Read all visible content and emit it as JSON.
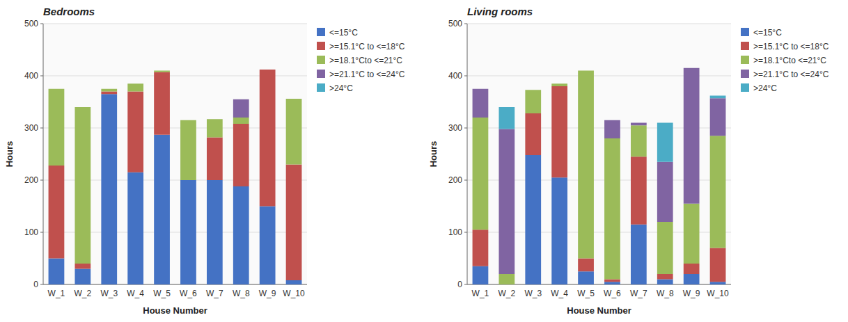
{
  "chart_data": [
    {
      "type": "bar",
      "stacked": true,
      "title": "Bedrooms",
      "xlabel": "House Number",
      "ylabel": "Hours",
      "categories": [
        "W_1",
        "W_2",
        "W_3",
        "W_4",
        "W_5",
        "W_6",
        "W_7",
        "W_8",
        "W_9",
        "W_10"
      ],
      "series": [
        {
          "name": "<=15°C",
          "color": "#4472C4",
          "values": [
            50,
            30,
            365,
            215,
            287,
            200,
            200,
            188,
            150,
            8
          ]
        },
        {
          "name": ">=15.1°C to <=18°C",
          "color": "#C0504D",
          "values": [
            178,
            10,
            5,
            155,
            120,
            0,
            82,
            120,
            262,
            222
          ]
        },
        {
          "name": ">=18.1°Cto <=21°C",
          "color": "#9BBB59",
          "values": [
            147,
            300,
            5,
            15,
            3,
            115,
            35,
            12,
            0,
            126
          ]
        },
        {
          "name": ">=21.1°C to <=24°C",
          "color": "#8064A2",
          "values": [
            0,
            0,
            0,
            0,
            0,
            0,
            0,
            35,
            0,
            0
          ]
        },
        {
          "name": ">24°C",
          "color": "#4BACC6",
          "values": [
            0,
            0,
            0,
            0,
            0,
            0,
            0,
            0,
            0,
            0
          ]
        }
      ],
      "ylim": [
        0,
        500
      ],
      "yticks": [
        0,
        100,
        200,
        300,
        400,
        500
      ],
      "grid": true,
      "legend": "right"
    },
    {
      "type": "bar",
      "stacked": true,
      "title": "Living rooms",
      "xlabel": "House Number",
      "ylabel": "Hours",
      "categories": [
        "W_1",
        "W_2",
        "W_3",
        "W_4",
        "W_5",
        "W_6",
        "W_7",
        "W_8",
        "W_9",
        "W_10"
      ],
      "series": [
        {
          "name": "<=15°C",
          "color": "#4472C4",
          "values": [
            35,
            0,
            248,
            205,
            25,
            5,
            115,
            10,
            20,
            5
          ]
        },
        {
          "name": ">=15.1°C to <=18°C",
          "color": "#C0504D",
          "values": [
            70,
            0,
            80,
            175,
            25,
            5,
            130,
            10,
            20,
            65
          ]
        },
        {
          "name": ">=18.1°Cto <=21°C",
          "color": "#9BBB59",
          "values": [
            215,
            20,
            45,
            5,
            360,
            270,
            60,
            100,
            115,
            215
          ]
        },
        {
          "name": ">=21.1°C to <=24°C",
          "color": "#8064A2",
          "values": [
            55,
            278,
            0,
            0,
            0,
            35,
            5,
            115,
            260,
            72
          ]
        },
        {
          "name": ">24°C",
          "color": "#4BACC6",
          "values": [
            0,
            42,
            0,
            0,
            0,
            0,
            0,
            75,
            0,
            5
          ]
        }
      ],
      "ylim": [
        0,
        500
      ],
      "yticks": [
        0,
        100,
        200,
        300,
        400,
        500
      ],
      "grid": true,
      "legend": "right"
    }
  ]
}
